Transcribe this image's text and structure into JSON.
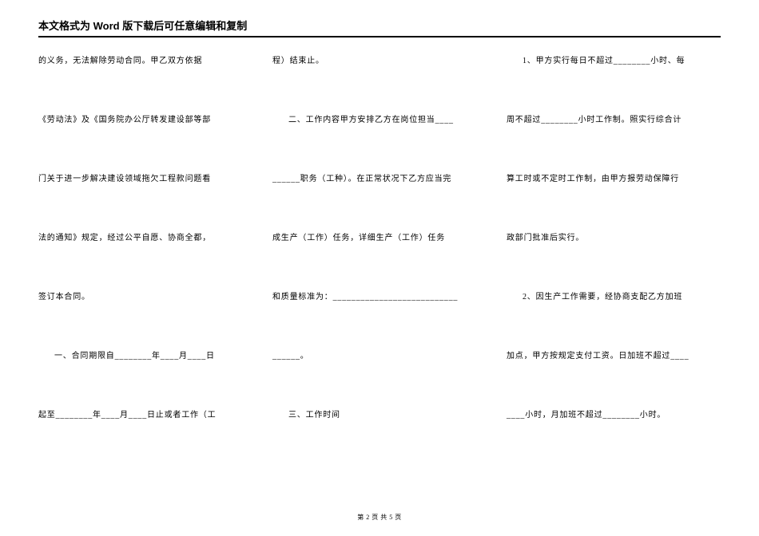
{
  "header": {
    "title": "本文格式为 Word 版下载后可任意编辑和复制"
  },
  "columns": {
    "col1": {
      "p1": "的义务，无法解除劳动合同。甲乙双方依据",
      "p2": "《劳动法》及《国务院办公厅转发建设部等部",
      "p3": "门关于进一步解决建设领域拖欠工程款问题看",
      "p4": "法的通知》规定，经过公平自愿、协商全都，",
      "p5": "签订本合同。",
      "p6": "一、合同期限自________年____月____日",
      "p7": "起至________年____月____日止或者工作（工"
    },
    "col2": {
      "p1": "程）结束止。",
      "p2": "二、工作内容甲方安排乙方在岗位担当____",
      "p3": "______职务（工种）。在正常状况下乙方应当完",
      "p4": "成生产（工作）任务，详细生产（工作）任务",
      "p5": "和质量标准为：___________________________",
      "p6": "______。",
      "p7": "三、工作时间"
    },
    "col3": {
      "p1": "1、甲方实行每日不超过________小时、每",
      "p2": "周不超过________小时工作制。照实行综合计",
      "p3": "算工时或不定时工作制，由甲方报劳动保障行",
      "p4": "政部门批准后实行。",
      "p5": "2、因生产工作需要，经协商支配乙方加班",
      "p6": "加点，甲方按规定支付工资。日加班不超过____",
      "p7": "____小时，月加班不超过________小时。"
    }
  },
  "footer": {
    "text": "第 2 页 共 5 页"
  },
  "styling": {
    "page_bg": "#ffffff",
    "text_color": "#000000",
    "header_fontsize": 13,
    "body_fontsize": 10,
    "footer_fontsize": 8,
    "line_height": 1.8,
    "column_count": 3,
    "row_gap": 56
  }
}
